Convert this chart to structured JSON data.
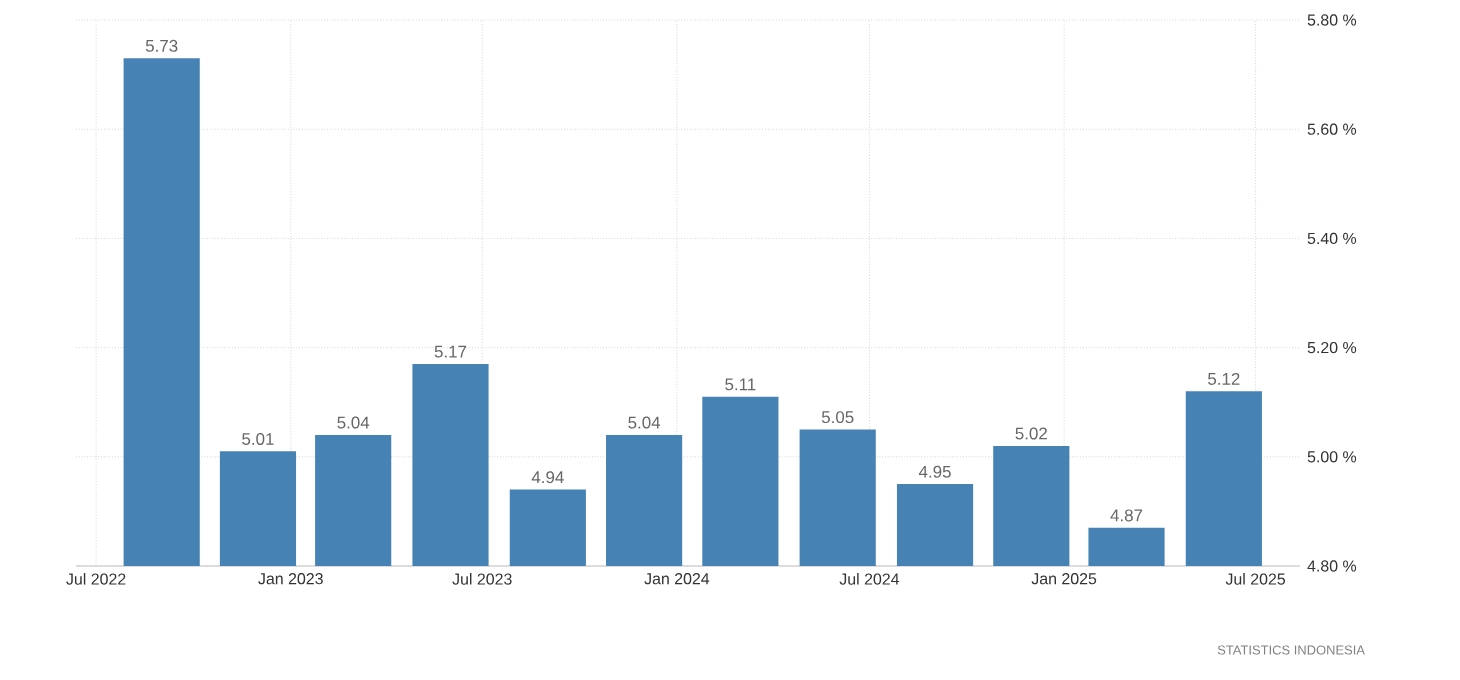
{
  "chart_data": {
    "type": "bar",
    "x": [
      "2022-09",
      "2022-12",
      "2023-03",
      "2023-06",
      "2023-09",
      "2023-12",
      "2024-03",
      "2024-06",
      "2024-09",
      "2024-12",
      "2025-03",
      "2025-06"
    ],
    "values": [
      5.73,
      5.01,
      5.04,
      5.17,
      4.94,
      5.04,
      5.11,
      5.05,
      4.95,
      5.02,
      4.87,
      5.12
    ],
    "color": "#4682b4",
    "xlim": [
      "2022-06-12",
      "2025-08-12"
    ],
    "xticks": [
      {
        "value": "2022-07",
        "label": "Jul 2022"
      },
      {
        "value": "2023-01",
        "label": "Jan 2023"
      },
      {
        "value": "2023-07",
        "label": "Jul 2023"
      },
      {
        "value": "2024-01",
        "label": "Jan 2024"
      },
      {
        "value": "2024-07",
        "label": "Jul 2024"
      },
      {
        "value": "2025-01",
        "label": "Jan 2025"
      },
      {
        "value": "2025-07",
        "label": "Jul 2025"
      }
    ],
    "ylim": [
      4.8,
      5.8
    ],
    "yticks": [
      {
        "value": 4.8,
        "label": "4.80 %"
      },
      {
        "value": 5.0,
        "label": "5.00 %"
      },
      {
        "value": 5.2,
        "label": "5.20 %"
      },
      {
        "value": 5.4,
        "label": "5.40 %"
      },
      {
        "value": 5.6,
        "label": "5.60 %"
      },
      {
        "value": 5.8,
        "label": "5.80 %"
      }
    ],
    "grid": true,
    "data_labels": true,
    "annotations": [
      "STATISTICS INDONESIA"
    ]
  }
}
